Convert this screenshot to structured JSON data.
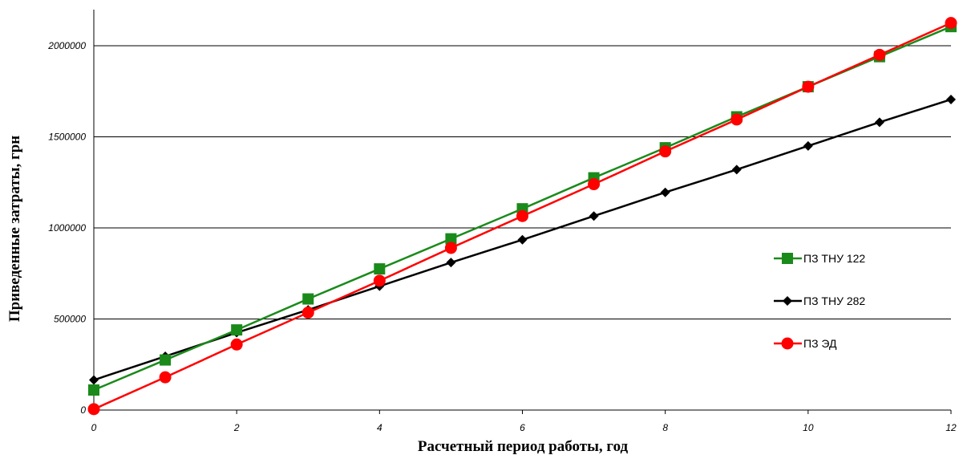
{
  "chart_data": {
    "type": "line",
    "title": "",
    "xlabel": "Расчетный период работы, год",
    "ylabel": "Приведенные затраты, грн",
    "xlim": [
      0,
      12
    ],
    "ylim": [
      0,
      2000000
    ],
    "x_ticks": [
      0,
      2,
      4,
      6,
      8,
      10,
      12
    ],
    "y_ticks": [
      0,
      500000,
      1000000,
      1500000,
      2000000
    ],
    "grid": "horizontal",
    "legend_position": "right",
    "x": [
      0,
      1,
      2,
      3,
      4,
      5,
      6,
      7,
      8,
      9,
      10,
      11,
      12
    ],
    "series": [
      {
        "name": "ПЗ ТНУ 122",
        "color": "#1a8a1a",
        "marker": "square",
        "values": [
          110000,
          275000,
          440000,
          610000,
          775000,
          940000,
          1105000,
          1275000,
          1440000,
          1610000,
          1775000,
          1940000,
          2105000
        ]
      },
      {
        "name": "ПЗ ТНУ 282",
        "color": "#000000",
        "marker": "diamond",
        "values": [
          165000,
          295000,
          425000,
          550000,
          680000,
          810000,
          935000,
          1065000,
          1195000,
          1320000,
          1450000,
          1580000,
          1705000
        ]
      },
      {
        "name": "ПЗ ЭД",
        "color": "#ff0000",
        "marker": "circle",
        "values": [
          5000,
          180000,
          360000,
          535000,
          710000,
          890000,
          1065000,
          1240000,
          1420000,
          1595000,
          1775000,
          1950000,
          2125000
        ]
      }
    ]
  }
}
